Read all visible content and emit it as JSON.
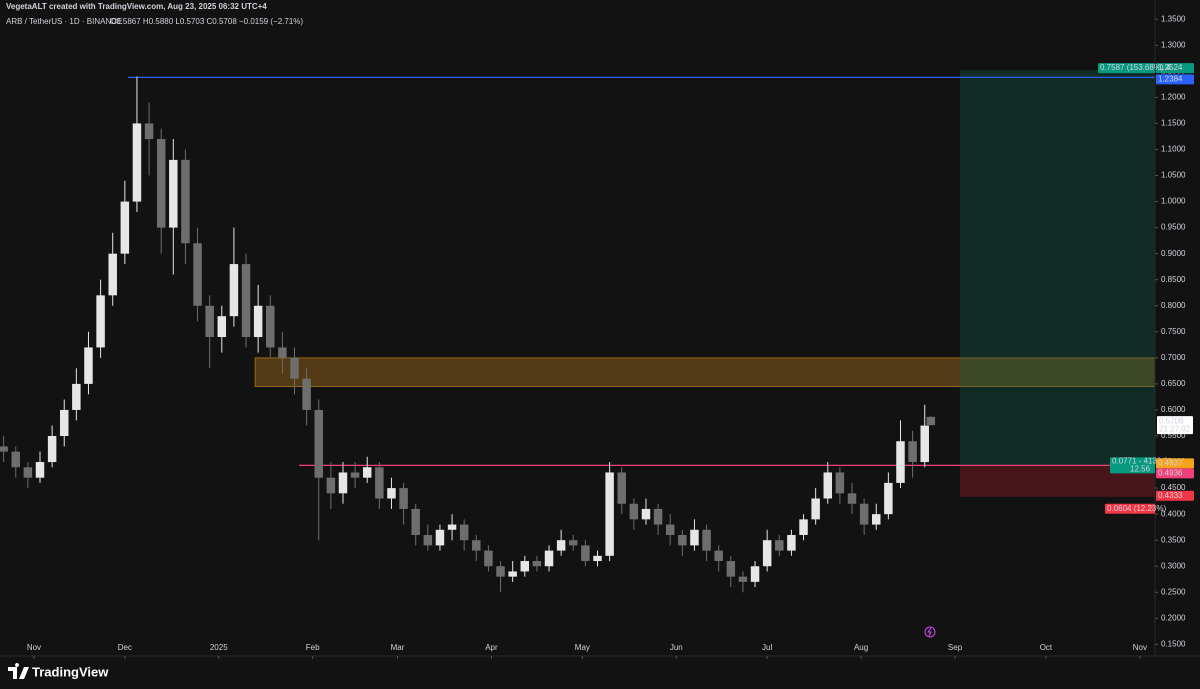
{
  "header": {
    "credit": "VegetaALT created with TradingView.com, Aug 23, 2025 06:32 UTC+4",
    "symbol": "ARB / TetherUS · 1D · BINANCE",
    "ohlc_text": "O0.5867 H0.5880 L0.5703 C0.5708 −0.0159 (−2.71%)"
  },
  "chart_data": {
    "type": "candlestick",
    "up_color": "#e6e6e6",
    "down_color": "#6e6e6e",
    "x": [
      -10,
      -6,
      -2,
      2,
      6,
      10,
      14,
      18,
      22,
      26,
      30,
      34,
      38,
      42,
      46,
      50,
      54,
      58,
      62,
      66,
      70,
      74,
      78,
      82,
      86,
      90,
      94,
      98,
      102,
      106,
      110,
      114,
      118,
      122,
      126,
      130,
      134,
      138,
      142,
      146,
      150,
      154,
      158,
      162,
      166,
      170,
      174,
      178,
      182,
      186,
      190,
      194,
      198,
      202,
      206,
      210,
      214,
      218,
      222,
      226,
      230,
      234,
      238,
      242,
      246,
      250,
      254,
      258,
      262,
      266,
      270,
      274,
      278,
      282,
      286,
      290,
      294,
      296
    ],
    "open": [
      0.53,
      0.52,
      0.49,
      0.47,
      0.5,
      0.55,
      0.6,
      0.65,
      0.72,
      0.82,
      0.9,
      1.0,
      1.15,
      1.12,
      0.95,
      1.08,
      0.92,
      0.8,
      0.74,
      0.78,
      0.88,
      0.74,
      0.8,
      0.72,
      0.7,
      0.66,
      0.6,
      0.47,
      0.44,
      0.48,
      0.47,
      0.49,
      0.43,
      0.45,
      0.41,
      0.36,
      0.34,
      0.37,
      0.38,
      0.35,
      0.33,
      0.3,
      0.28,
      0.29,
      0.31,
      0.3,
      0.33,
      0.35,
      0.34,
      0.31,
      0.32,
      0.48,
      0.42,
      0.39,
      0.41,
      0.38,
      0.36,
      0.34,
      0.37,
      0.33,
      0.31,
      0.28,
      0.27,
      0.3,
      0.35,
      0.33,
      0.36,
      0.39,
      0.43,
      0.48,
      0.44,
      0.42,
      0.38,
      0.4,
      0.46,
      0.54,
      0.5,
      0.5867
    ],
    "high": [
      0.55,
      0.53,
      0.5,
      0.52,
      0.57,
      0.62,
      0.68,
      0.75,
      0.85,
      0.94,
      1.04,
      1.24,
      1.19,
      1.14,
      1.12,
      1.1,
      0.95,
      0.82,
      0.8,
      0.95,
      0.9,
      0.84,
      0.82,
      0.75,
      0.72,
      0.68,
      0.62,
      0.5,
      0.5,
      0.5,
      0.51,
      0.5,
      0.47,
      0.46,
      0.42,
      0.38,
      0.38,
      0.4,
      0.39,
      0.36,
      0.34,
      0.31,
      0.31,
      0.32,
      0.32,
      0.34,
      0.37,
      0.36,
      0.35,
      0.33,
      0.5,
      0.49,
      0.43,
      0.43,
      0.42,
      0.4,
      0.37,
      0.39,
      0.38,
      0.34,
      0.32,
      0.29,
      0.31,
      0.37,
      0.36,
      0.37,
      0.4,
      0.45,
      0.5,
      0.49,
      0.46,
      0.43,
      0.42,
      0.48,
      0.58,
      0.56,
      0.61,
      0.588
    ],
    "low": [
      0.5,
      0.47,
      0.45,
      0.46,
      0.49,
      0.53,
      0.58,
      0.63,
      0.7,
      0.8,
      0.88,
      0.98,
      1.05,
      0.9,
      0.86,
      0.88,
      0.77,
      0.68,
      0.71,
      0.76,
      0.72,
      0.71,
      0.7,
      0.67,
      0.63,
      0.57,
      0.35,
      0.41,
      0.42,
      0.45,
      0.46,
      0.41,
      0.41,
      0.38,
      0.34,
      0.33,
      0.33,
      0.35,
      0.33,
      0.31,
      0.29,
      0.25,
      0.27,
      0.28,
      0.29,
      0.29,
      0.32,
      0.33,
      0.3,
      0.3,
      0.31,
      0.4,
      0.37,
      0.38,
      0.36,
      0.34,
      0.32,
      0.33,
      0.31,
      0.29,
      0.26,
      0.25,
      0.26,
      0.29,
      0.32,
      0.32,
      0.35,
      0.38,
      0.42,
      0.42,
      0.4,
      0.36,
      0.37,
      0.39,
      0.45,
      0.47,
      0.49,
      0.5703
    ],
    "close": [
      0.52,
      0.49,
      0.47,
      0.5,
      0.55,
      0.6,
      0.65,
      0.72,
      0.82,
      0.9,
      1.0,
      1.15,
      1.12,
      0.95,
      1.08,
      0.92,
      0.8,
      0.74,
      0.78,
      0.88,
      0.74,
      0.8,
      0.72,
      0.7,
      0.66,
      0.6,
      0.47,
      0.44,
      0.48,
      0.47,
      0.49,
      0.43,
      0.45,
      0.41,
      0.36,
      0.34,
      0.37,
      0.38,
      0.35,
      0.33,
      0.3,
      0.28,
      0.29,
      0.31,
      0.3,
      0.33,
      0.35,
      0.34,
      0.31,
      0.32,
      0.48,
      0.42,
      0.39,
      0.41,
      0.38,
      0.36,
      0.34,
      0.37,
      0.33,
      0.31,
      0.28,
      0.27,
      0.3,
      0.35,
      0.33,
      0.36,
      0.39,
      0.43,
      0.48,
      0.44,
      0.42,
      0.38,
      0.4,
      0.46,
      0.54,
      0.5,
      0.57,
      0.5708
    ],
    "xlim": [
      -11.2,
      370
    ],
    "ylim": [
      0.1277,
      1.3869
    ],
    "xticks": [
      {
        "value": 0,
        "label": "Nov"
      },
      {
        "value": 30,
        "label": "Dec"
      },
      {
        "value": 61,
        "label": "2025"
      },
      {
        "value": 92,
        "label": "Feb"
      },
      {
        "value": 120,
        "label": "Mar"
      },
      {
        "value": 151,
        "label": "Apr"
      },
      {
        "value": 181,
        "label": "May"
      },
      {
        "value": 212,
        "label": "Jun"
      },
      {
        "value": 242,
        "label": "Jul"
      },
      {
        "value": 273,
        "label": "Aug"
      },
      {
        "value": 304,
        "label": "Sep"
      },
      {
        "value": 334,
        "label": "Oct"
      },
      {
        "value": 365,
        "label": "Nov"
      }
    ],
    "yticks": [
      {
        "value": 1.35,
        "label": "1.3500"
      },
      {
        "value": 1.3,
        "label": "1.3000"
      },
      {
        "value": 1.25,
        "label": "1.2500"
      },
      {
        "value": 1.2,
        "label": "1.2000"
      },
      {
        "value": 1.15,
        "label": "1.1500"
      },
      {
        "value": 1.1,
        "label": "1.1000"
      },
      {
        "value": 1.05,
        "label": "1.0500"
      },
      {
        "value": 1.0,
        "label": "1.0000"
      },
      {
        "value": 0.95,
        "label": "0.9500"
      },
      {
        "value": 0.9,
        "label": "0.9000"
      },
      {
        "value": 0.85,
        "label": "0.8500"
      },
      {
        "value": 0.8,
        "label": "0.8000"
      },
      {
        "value": 0.75,
        "label": "0.7500"
      },
      {
        "value": 0.7,
        "label": "0.7000"
      },
      {
        "value": 0.65,
        "label": "0.6500"
      },
      {
        "value": 0.6,
        "label": "0.6000"
      },
      {
        "value": 0.55,
        "label": "0.5500"
      },
      {
        "value": 0.5,
        "label": "0.5000"
      },
      {
        "value": 0.45,
        "label": "0.4500"
      },
      {
        "value": 0.4,
        "label": "0.4000"
      },
      {
        "value": 0.35,
        "label": "0.3500"
      },
      {
        "value": 0.3,
        "label": "0.3000"
      },
      {
        "value": 0.25,
        "label": "0.2500"
      },
      {
        "value": 0.2,
        "label": "0.2000"
      },
      {
        "value": 0.15,
        "label": "0.1500"
      }
    ],
    "levels": [
      {
        "value": 1.2384,
        "from": 31,
        "color": "#2962ff"
      },
      {
        "value": 0.4936,
        "from": 87.5,
        "color": "#f23e7a"
      }
    ],
    "zone": {
      "low": 0.645,
      "high": 0.7,
      "from": 73,
      "color": "#f7a21b"
    },
    "position": {
      "from": 305.6,
      "target": 1.2524,
      "entry": 0.4937,
      "stop": 0.4333,
      "target_label": "0.7587 (153.68%) 4",
      "entry_label": "0.0771 - 4139.0",
      "qty_label": "12.56",
      "stop_label": "0.0604 (12.23%)"
    },
    "last_price": 0.5708,
    "countdown": "21:27:02"
  },
  "footer": {
    "brand": "TradingView"
  }
}
